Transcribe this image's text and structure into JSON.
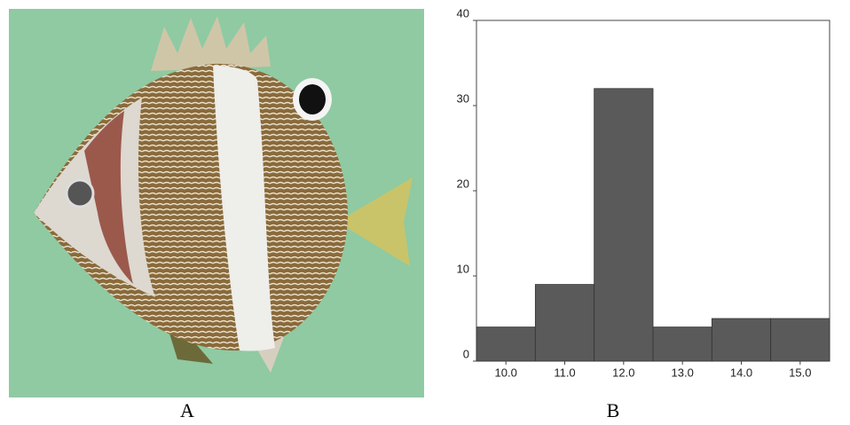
{
  "panel_labels": [
    "A",
    "B"
  ],
  "chart_data": {
    "type": "histogram",
    "bins": [
      9.5,
      10.5,
      11.5,
      12.5,
      13.5,
      14.5,
      15.5
    ],
    "values": [
      4,
      9,
      32,
      4,
      5,
      5
    ],
    "color": "#5a5a5a",
    "xlim": [
      9.5,
      15.5
    ],
    "xticks": [
      {
        "value": 10,
        "label": "10.0"
      },
      {
        "value": 11,
        "label": "11.0"
      },
      {
        "value": 12,
        "label": "12.0"
      },
      {
        "value": 13,
        "label": "13.0"
      },
      {
        "value": 14,
        "label": "14.0"
      },
      {
        "value": 15,
        "label": "15.0"
      }
    ],
    "ylim": [
      0,
      40
    ],
    "yticks": [
      0,
      10,
      20,
      30,
      40
    ]
  }
}
